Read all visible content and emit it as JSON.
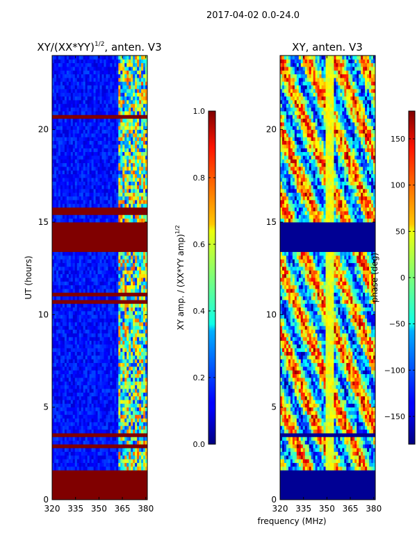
{
  "suptitle": "2017-04-02 0.0-24.0",
  "colors": {
    "high": "#800000",
    "low": "#00007f",
    "mid": "#0040ff"
  },
  "chart_data": [
    {
      "type": "heatmap",
      "title": "XY/(XX*YY)",
      "title_sup": "1/2",
      "title_suffix": ", anten. V3",
      "ylabel": "UT (hours)",
      "xlabel": "",
      "xlim": [
        320,
        381
      ],
      "ylim": [
        0,
        24
      ],
      "xticks": [
        "320",
        "335",
        "350",
        "365",
        "380"
      ],
      "xtick_values": [
        320,
        335,
        350,
        365,
        380
      ],
      "yticks": [
        "0",
        "5",
        "10",
        "15",
        "20"
      ],
      "ytick_values": [
        0,
        5,
        10,
        15,
        20
      ],
      "flagged_hours": [
        [
          0,
          1.55
        ],
        [
          3.35,
          3.65
        ],
        [
          2.85,
          2.98
        ],
        [
          13.4,
          15.0
        ],
        [
          15.5,
          15.75
        ],
        [
          20.6,
          20.8
        ],
        [
          10.7,
          10.85
        ],
        [
          11.05,
          11.2
        ]
      ],
      "colorbar": {
        "label": "XY amp. / (XX*YY amp)",
        "label_sup": "1/2",
        "ticks": [
          "0.0",
          "0.2",
          "0.4",
          "0.6",
          "0.8",
          "1.0"
        ],
        "tick_values": [
          0.0,
          0.2,
          0.4,
          0.6,
          0.8,
          1.0
        ],
        "range": [
          0.0,
          1.0
        ]
      }
    },
    {
      "type": "heatmap",
      "title": "XY, anten. V3",
      "ylabel": "",
      "xlabel": "frequency (MHz)",
      "xlim": [
        320,
        381
      ],
      "ylim": [
        0,
        24
      ],
      "xticks": [
        "320",
        "335",
        "350",
        "365",
        "380"
      ],
      "xtick_values": [
        320,
        335,
        350,
        365,
        380
      ],
      "yticks": [
        "0",
        "5",
        "10",
        "15",
        "20"
      ],
      "ytick_values": [
        0,
        5,
        10,
        15,
        20
      ],
      "flagged_hours": [
        [
          0,
          1.55
        ],
        [
          13.4,
          15.0
        ],
        [
          3.35,
          3.65
        ]
      ],
      "colorbar": {
        "label": "phase (deg)",
        "ticks": [
          "−150",
          "−100",
          "−50",
          "0",
          "50",
          "100",
          "150"
        ],
        "tick_values": [
          -150,
          -100,
          -50,
          0,
          50,
          100,
          150
        ],
        "range": [
          -180,
          180
        ]
      }
    }
  ]
}
